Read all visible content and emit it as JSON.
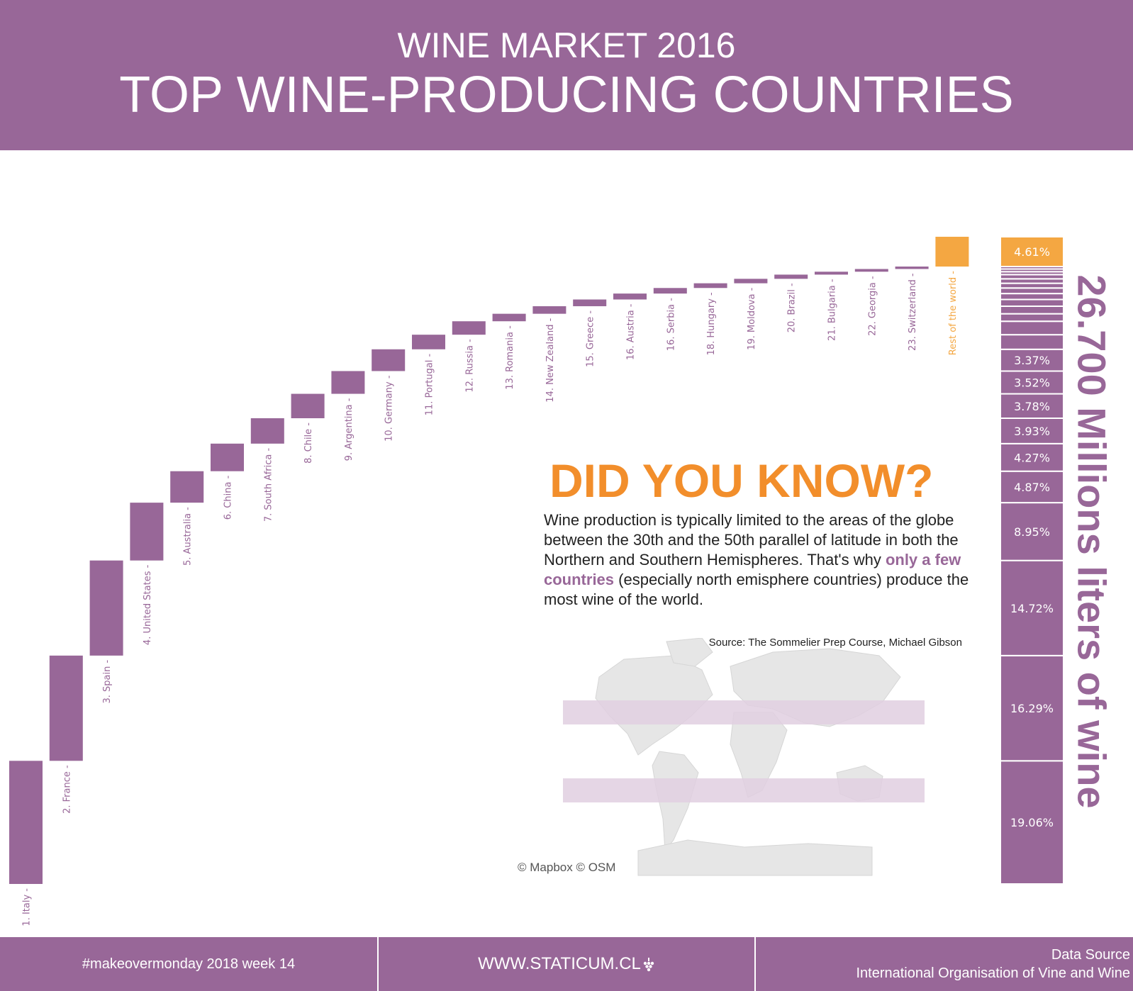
{
  "header": {
    "kicker": "WINE MARKET 2016",
    "title": "TOP WINE-PRODUCING COUNTRIES"
  },
  "did_you_know": {
    "title": "DID YOU KNOW?",
    "body_part1": "Wine production is typically limited to the areas of the globe between the 30th and the 50th parallel of latitude in both the Northern and Southern Hemispheres. That's why ",
    "highlight": "only a few countries",
    "body_part2": " (especially north emisphere countries) produce the most wine of the world.",
    "source": "Source: The Sommelier Prep Course, Michael Gibson",
    "map_credit": "© Mapbox © OSM"
  },
  "total_label": "26.700 Millions liters of wine",
  "footer": {
    "left": "#makeovermonday 2018 week 14",
    "center": "WWW.STATICUM.CL",
    "right_line1": "Data Source",
    "right_line2": "International Organisation of Vine and Wine"
  },
  "colors": {
    "purple": "#986798",
    "orange": "#f4a742",
    "accent_orange": "#f28e2b",
    "band": "#e0cfe0"
  },
  "icons": {
    "footer_logo": "grape-icon"
  },
  "chart_data": {
    "type": "waterfall",
    "title": "",
    "unit": "Millions liters of wine",
    "total": 26700,
    "xlabel": "",
    "ylabel": "",
    "grid": false,
    "legend": "none",
    "categories": [
      "1. Italy",
      "2. France",
      "3. Spain",
      "4. United States",
      "5. Australia",
      "6. China",
      "7. South Africa",
      "8. Chile",
      "9. Argentina",
      "10. Germany",
      "11. Portugal",
      "12. Russia",
      "13. Romania",
      "14. New Zealand",
      "15. Greece",
      "16. Austria",
      "16. Serbia",
      "18. Hungary",
      "19. Moldova",
      "20. Brazil",
      "21. Bulgaria",
      "22. Georgia",
      "23. Switzerland",
      "Rest of the world"
    ],
    "values": [
      19.06,
      16.29,
      14.72,
      8.95,
      4.87,
      4.27,
      3.93,
      3.78,
      3.52,
      3.37,
      2.26,
      2.08,
      1.16,
      1.17,
      1.04,
      0.92,
      0.86,
      0.73,
      0.69,
      0.65,
      0.45,
      0.42,
      0.38,
      4.61
    ],
    "value_format": "percent of world total",
    "highlight_category": "Rest of the world",
    "stacked_bar": {
      "labeled_segments": [
        "19.06%",
        "16.29%",
        "14.72%",
        "8.95%",
        "4.87%",
        "4.27%",
        "3.93%",
        "3.78%",
        "3.52%",
        "3.37%",
        "4.61%"
      ]
    }
  }
}
